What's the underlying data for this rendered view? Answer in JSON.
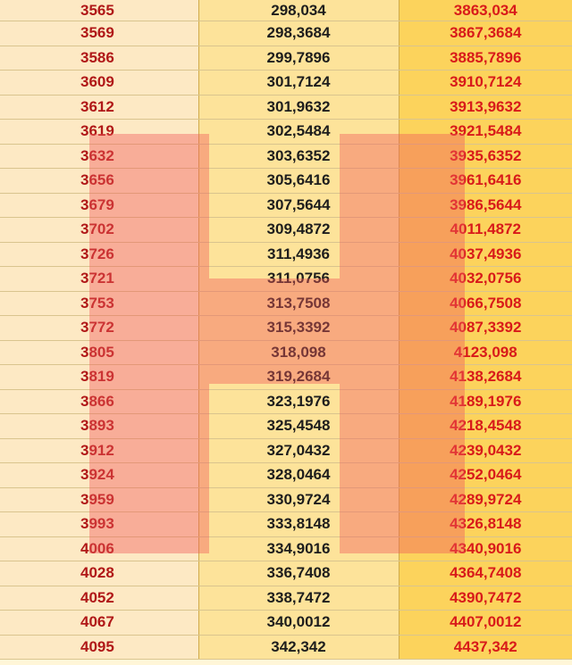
{
  "table": {
    "rows": [
      [
        "3565",
        "298,034",
        "3863,034"
      ],
      [
        "3569",
        "298,3684",
        "3867,3684"
      ],
      [
        "3586",
        "299,7896",
        "3885,7896"
      ],
      [
        "3609",
        "301,7124",
        "3910,7124"
      ],
      [
        "3612",
        "301,9632",
        "3913,9632"
      ],
      [
        "3619",
        "302,5484",
        "3921,5484"
      ],
      [
        "3632",
        "303,6352",
        "3935,6352"
      ],
      [
        "3656",
        "305,6416",
        "3961,6416"
      ],
      [
        "3679",
        "307,5644",
        "3986,5644"
      ],
      [
        "3702",
        "309,4872",
        "4011,4872"
      ],
      [
        "3726",
        "311,4936",
        "4037,4936"
      ],
      [
        "3721",
        "311,0756",
        "4032,0756"
      ],
      [
        "3753",
        "313,7508",
        "4066,7508"
      ],
      [
        "3772",
        "315,3392",
        "4087,3392"
      ],
      [
        "3805",
        "318,098",
        "4123,098"
      ],
      [
        "3819",
        "319,2684",
        "4138,2684"
      ],
      [
        "3866",
        "323,1976",
        "4189,1976"
      ],
      [
        "3893",
        "325,4548",
        "4218,4548"
      ],
      [
        "3912",
        "327,0432",
        "4239,0432"
      ],
      [
        "3924",
        "328,0464",
        "4252,0464"
      ],
      [
        "3959",
        "330,9724",
        "4289,9724"
      ],
      [
        "3993",
        "333,8148",
        "4326,8148"
      ],
      [
        "4006",
        "334,9016",
        "4340,9016"
      ],
      [
        "4028",
        "336,7408",
        "4364,7408"
      ],
      [
        "4052",
        "338,7472",
        "4390,7472"
      ],
      [
        "4067",
        "340,0012",
        "4407,0012"
      ],
      [
        "4095",
        "342,342",
        "4437,342"
      ]
    ]
  },
  "colors": {
    "col1_bg": "#fde9c4",
    "col2_bg": "#fde39a",
    "col3_bg": "#fcd35c",
    "col1_text": "#b01818",
    "col2_text": "#1d1d1d",
    "col3_text": "#d81a1a",
    "watermark": "#f05a5a"
  },
  "watermark": {
    "shape": "letter-H-logo-icon"
  }
}
